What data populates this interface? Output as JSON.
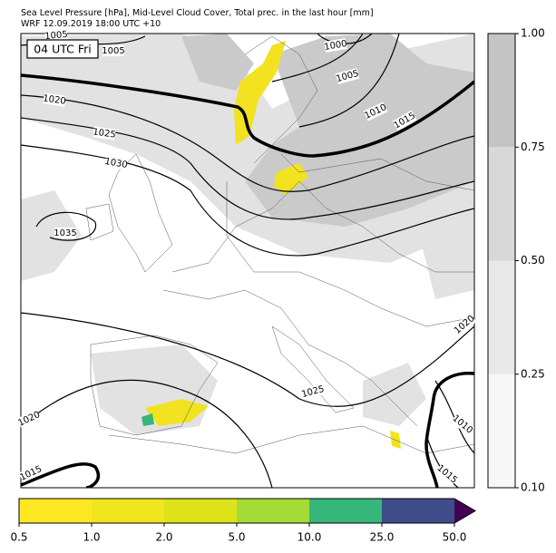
{
  "header": {
    "title_line1": "Sea Level Pressure [hPa], Mid-Level Cloud Cover, Total prec. in the last hour [mm]",
    "title_line2": "WRF 12.09.2019 18:00 UTC +10"
  },
  "map": {
    "time_label": "04 UTC Fri",
    "isobar_labels": [
      "1005",
      "1005",
      "1000",
      "1005",
      "1010",
      "1015",
      "1020",
      "1025",
      "1030",
      "1035",
      "1025",
      "1020",
      "1010",
      "1015",
      "1020",
      "1015"
    ]
  },
  "cloud_colorbar": {
    "ticks": [
      "0.10",
      "0.25",
      "0.50",
      "0.75",
      "1.00"
    ],
    "colors": [
      "#f7f7f7",
      "#e8e8e8",
      "#d8d8d8",
      "#c4c4c4"
    ]
  },
  "precip_colorbar": {
    "ticks": [
      "0.5",
      "1.0",
      "2.0",
      "5.0",
      "10.0",
      "25.0",
      "50.0"
    ],
    "colors": [
      "#fde725",
      "#f1e51d",
      "#dde318",
      "#a5db36",
      "#35b779",
      "#3e4c8a"
    ],
    "extend_color": "#440154"
  }
}
